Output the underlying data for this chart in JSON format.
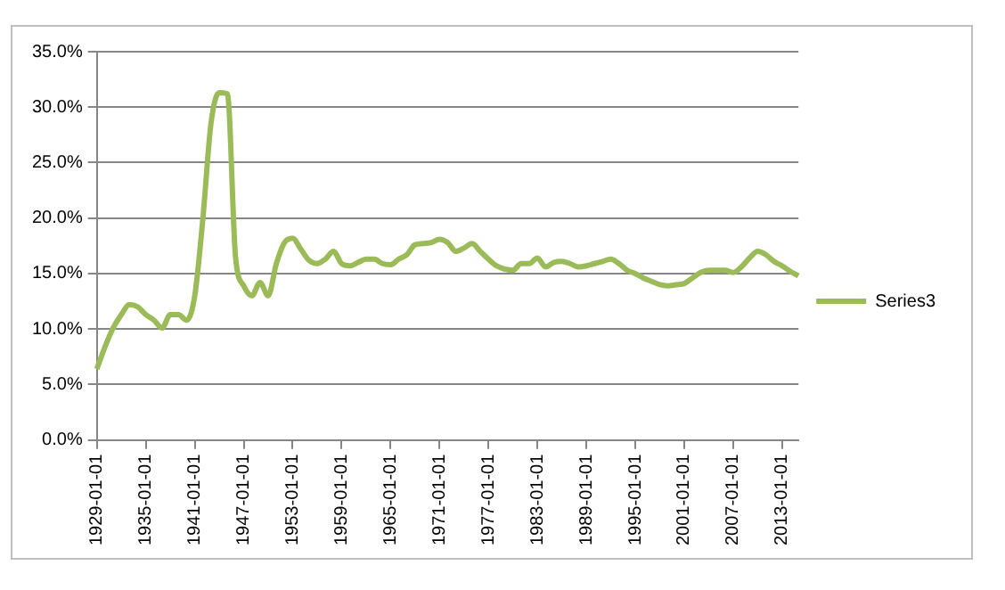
{
  "chart_data": {
    "type": "line",
    "categories": [
      "1929-01-01",
      null,
      null,
      null,
      null,
      null,
      "1935-01-01",
      null,
      null,
      null,
      null,
      null,
      "1941-01-01",
      null,
      null,
      null,
      null,
      null,
      "1947-01-01",
      null,
      null,
      null,
      null,
      null,
      "1953-01-01",
      null,
      null,
      null,
      null,
      null,
      "1959-01-01",
      null,
      null,
      null,
      null,
      null,
      "1965-01-01",
      null,
      null,
      null,
      null,
      null,
      "1971-01-01",
      null,
      null,
      null,
      null,
      null,
      "1977-01-01",
      null,
      null,
      null,
      null,
      null,
      "1983-01-01",
      null,
      null,
      null,
      null,
      null,
      "1989-01-01",
      null,
      null,
      null,
      null,
      null,
      "1995-01-01",
      null,
      null,
      null,
      null,
      null,
      "2001-01-01",
      null,
      null,
      null,
      null,
      null,
      "2007-01-01",
      null,
      null,
      null,
      null,
      null,
      "2013-01-01",
      null,
      null
    ],
    "series": [
      {
        "name": "Series3",
        "color": "#9bbb59",
        "values": [
          6.4,
          8.4,
          10.1,
          11.3,
          12.2,
          12.0,
          11.3,
          10.8,
          10.1,
          11.3,
          11.3,
          10.8,
          13.0,
          20.0,
          28.6,
          31.3,
          31.2,
          16.5,
          13.9,
          13.0,
          14.2,
          13.0,
          15.9,
          17.8,
          18.2,
          17.2,
          16.2,
          15.9,
          16.3,
          17.0,
          15.9,
          15.7,
          16.0,
          16.3,
          16.3,
          15.9,
          15.8,
          16.3,
          16.7,
          17.6,
          17.7,
          17.8,
          18.1,
          17.8,
          17.0,
          17.3,
          17.7,
          17.0,
          16.3,
          15.7,
          15.4,
          15.3,
          15.9,
          15.9,
          16.4,
          15.6,
          16.0,
          16.1,
          15.9,
          15.6,
          15.7,
          15.9,
          16.1,
          16.3,
          15.9,
          15.3,
          15.0,
          14.6,
          14.3,
          14.0,
          13.9,
          14.0,
          14.1,
          14.6,
          15.1,
          15.3,
          15.3,
          15.3,
          15.1,
          15.6,
          16.4,
          17.0,
          16.7,
          16.1,
          15.7,
          15.2,
          14.8
        ]
      }
    ],
    "ylim": [
      0,
      35
    ],
    "yticks": [
      {
        "value": 0,
        "label": "0.0%"
      },
      {
        "value": 5,
        "label": "5.0%"
      },
      {
        "value": 10,
        "label": "10.0%"
      },
      {
        "value": 15,
        "label": "15.0%"
      },
      {
        "value": 20,
        "label": "20.0%"
      },
      {
        "value": 25,
        "label": "25.0%"
      },
      {
        "value": 30,
        "label": "30.0%"
      },
      {
        "value": 35,
        "label": "35.0%"
      }
    ],
    "grid": "y",
    "legend": "right",
    "marker": "none",
    "line_style": "solid"
  }
}
